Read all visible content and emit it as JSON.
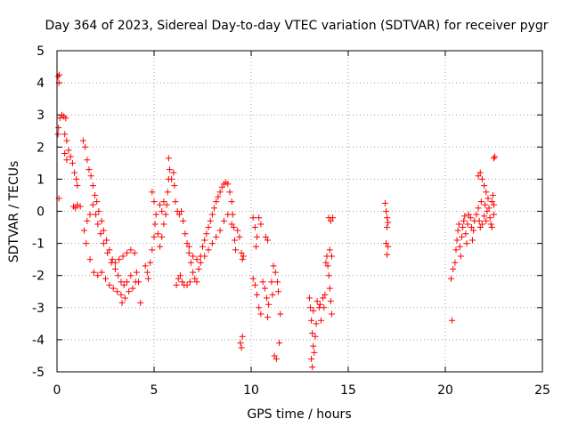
{
  "chart_data": {
    "type": "scatter",
    "title": "Day 364 of 2023, Sidereal Day-to-day VTEC variation (SDTVAR) for receiver pygr",
    "xlabel": "GPS time / hours",
    "ylabel": "SDTVAR / TECUs",
    "xlim": [
      0,
      25
    ],
    "ylim": [
      -5,
      5
    ],
    "xticks": [
      0,
      5,
      10,
      15,
      20,
      25
    ],
    "yticks": [
      -5,
      -4,
      -3,
      -2,
      -1,
      0,
      1,
      2,
      3,
      4,
      5
    ],
    "xtick_labels": [
      "0",
      "5",
      "10",
      "15",
      "20",
      "25"
    ],
    "ytick_labels": [
      "-5",
      "-4",
      "-3",
      "-2",
      "-1",
      "0",
      "1",
      "2",
      "3",
      "4",
      "5"
    ],
    "grid": true,
    "marker": "plus",
    "color": "#ff0000",
    "series": [
      {
        "name": "SDTVAR",
        "points": [
          [
            0.05,
            4.2
          ],
          [
            0.1,
            4.0
          ],
          [
            0.12,
            4.25
          ],
          [
            0.08,
            2.6
          ],
          [
            0.05,
            2.4
          ],
          [
            0.1,
            0.4
          ],
          [
            0.15,
            2.9
          ],
          [
            0.25,
            3.0
          ],
          [
            0.35,
            2.95
          ],
          [
            0.45,
            2.9
          ],
          [
            0.4,
            2.4
          ],
          [
            0.5,
            2.2
          ],
          [
            0.4,
            1.8
          ],
          [
            0.5,
            1.6
          ],
          [
            0.6,
            1.9
          ],
          [
            0.7,
            1.7
          ],
          [
            0.8,
            1.5
          ],
          [
            0.9,
            1.2
          ],
          [
            1.0,
            1.0
          ],
          [
            1.05,
            0.8
          ],
          [
            0.85,
            0.15
          ],
          [
            0.95,
            0.1
          ],
          [
            1.05,
            0.2
          ],
          [
            1.2,
            0.15
          ],
          [
            1.35,
            2.2
          ],
          [
            1.45,
            2.0
          ],
          [
            1.55,
            1.6
          ],
          [
            1.65,
            1.3
          ],
          [
            1.75,
            1.1
          ],
          [
            1.85,
            0.8
          ],
          [
            1.95,
            0.5
          ],
          [
            2.05,
            0.3
          ],
          [
            2.15,
            0.0
          ],
          [
            2.3,
            -0.3
          ],
          [
            2.4,
            -0.6
          ],
          [
            2.55,
            -0.9
          ],
          [
            2.7,
            -1.2
          ],
          [
            2.85,
            -1.5
          ],
          [
            3.0,
            -1.8
          ],
          [
            3.15,
            -2.0
          ],
          [
            3.3,
            -2.2
          ],
          [
            3.45,
            -2.3
          ],
          [
            3.6,
            -2.2
          ],
          [
            3.8,
            -2.0
          ],
          [
            1.4,
            -0.6
          ],
          [
            1.55,
            -0.3
          ],
          [
            1.7,
            -0.1
          ],
          [
            1.85,
            0.2
          ],
          [
            2.0,
            -0.1
          ],
          [
            2.1,
            -0.4
          ],
          [
            2.25,
            -0.7
          ],
          [
            2.4,
            -1.0
          ],
          [
            2.6,
            -1.3
          ],
          [
            2.8,
            -1.6
          ],
          [
            3.0,
            -1.6
          ],
          [
            3.2,
            -1.5
          ],
          [
            3.4,
            -1.4
          ],
          [
            3.6,
            -1.3
          ],
          [
            3.8,
            -1.2
          ],
          [
            4.0,
            -1.3
          ],
          [
            1.5,
            -1.0
          ],
          [
            1.7,
            -1.5
          ],
          [
            1.9,
            -1.9
          ],
          [
            2.1,
            -2.0
          ],
          [
            2.3,
            -1.9
          ],
          [
            2.5,
            -2.1
          ],
          [
            2.7,
            -2.3
          ],
          [
            2.9,
            -2.4
          ],
          [
            3.1,
            -2.5
          ],
          [
            3.3,
            -2.6
          ],
          [
            3.35,
            -2.85
          ],
          [
            3.5,
            -2.7
          ],
          [
            3.7,
            -2.5
          ],
          [
            3.9,
            -2.4
          ],
          [
            4.05,
            -2.2
          ],
          [
            4.1,
            -1.9
          ],
          [
            4.2,
            -2.2
          ],
          [
            4.3,
            -2.85
          ],
          [
            4.55,
            -1.7
          ],
          [
            4.65,
            -1.9
          ],
          [
            4.7,
            -2.1
          ],
          [
            4.8,
            -1.6
          ],
          [
            4.9,
            -1.2
          ],
          [
            5.0,
            -0.8
          ],
          [
            5.05,
            -0.4
          ],
          [
            5.1,
            -0.1
          ],
          [
            5.0,
            0.3
          ],
          [
            4.9,
            0.6
          ],
          [
            5.2,
            -0.7
          ],
          [
            5.3,
            -1.1
          ],
          [
            5.4,
            -0.8
          ],
          [
            5.5,
            -0.4
          ],
          [
            5.6,
            -0.1
          ],
          [
            5.5,
            0.3
          ],
          [
            5.4,
            0.0
          ],
          [
            5.3,
            0.2
          ],
          [
            5.65,
            0.2
          ],
          [
            5.7,
            0.6
          ],
          [
            5.75,
            1.0
          ],
          [
            5.8,
            1.3
          ],
          [
            5.75,
            1.65
          ],
          [
            5.9,
            1.0
          ],
          [
            6.0,
            1.2
          ],
          [
            6.05,
            0.8
          ],
          [
            6.1,
            0.3
          ],
          [
            6.2,
            0.0
          ],
          [
            6.3,
            -0.1
          ],
          [
            6.4,
            0.0
          ],
          [
            6.5,
            -0.3
          ],
          [
            6.6,
            -0.7
          ],
          [
            6.7,
            -1.0
          ],
          [
            6.8,
            -1.3
          ],
          [
            6.9,
            -1.6
          ],
          [
            7.0,
            -1.9
          ],
          [
            7.1,
            -2.1
          ],
          [
            7.2,
            -2.2
          ],
          [
            6.15,
            -2.3
          ],
          [
            6.25,
            -2.1
          ],
          [
            6.35,
            -2.0
          ],
          [
            6.45,
            -2.2
          ],
          [
            6.55,
            -2.3
          ],
          [
            6.7,
            -2.3
          ],
          [
            6.85,
            -2.2
          ],
          [
            7.3,
            -1.8
          ],
          [
            7.4,
            -1.4
          ],
          [
            7.5,
            -1.1
          ],
          [
            7.6,
            -0.9
          ],
          [
            7.7,
            -0.7
          ],
          [
            7.8,
            -0.5
          ],
          [
            7.9,
            -0.3
          ],
          [
            8.0,
            -0.1
          ],
          [
            8.1,
            0.1
          ],
          [
            8.2,
            0.3
          ],
          [
            8.3,
            0.45
          ],
          [
            8.4,
            0.6
          ],
          [
            8.5,
            0.75
          ],
          [
            8.6,
            0.85
          ],
          [
            8.7,
            0.9
          ],
          [
            8.8,
            0.85
          ],
          [
            8.9,
            0.6
          ],
          [
            9.0,
            0.3
          ],
          [
            9.05,
            -0.1
          ],
          [
            9.1,
            -0.5
          ],
          [
            9.15,
            -0.9
          ],
          [
            9.2,
            -1.2
          ],
          [
            6.8,
            -1.1
          ],
          [
            7.0,
            -1.4
          ],
          [
            7.2,
            -1.5
          ],
          [
            7.4,
            -1.6
          ],
          [
            7.6,
            -1.4
          ],
          [
            7.8,
            -1.2
          ],
          [
            8.0,
            -1.0
          ],
          [
            8.2,
            -0.8
          ],
          [
            8.4,
            -0.6
          ],
          [
            8.6,
            -0.3
          ],
          [
            8.8,
            -0.1
          ],
          [
            9.0,
            -0.4
          ],
          [
            9.3,
            -0.6
          ],
          [
            9.4,
            -0.8
          ],
          [
            9.5,
            -1.3
          ],
          [
            9.55,
            -1.5
          ],
          [
            9.6,
            -1.4
          ],
          [
            9.45,
            -4.1
          ],
          [
            9.55,
            -3.9
          ],
          [
            9.5,
            -4.25
          ],
          [
            10.1,
            -0.2
          ],
          [
            10.2,
            -0.5
          ],
          [
            10.3,
            -0.8
          ],
          [
            10.25,
            -1.1
          ],
          [
            10.4,
            -0.2
          ],
          [
            10.5,
            -0.4
          ],
          [
            10.1,
            -2.1
          ],
          [
            10.2,
            -2.3
          ],
          [
            10.3,
            -2.6
          ],
          [
            10.4,
            -3.0
          ],
          [
            10.5,
            -3.2
          ],
          [
            10.6,
            -2.2
          ],
          [
            10.7,
            -2.4
          ],
          [
            10.8,
            -2.7
          ],
          [
            10.9,
            -2.9
          ],
          [
            10.85,
            -3.3
          ],
          [
            10.75,
            -0.8
          ],
          [
            10.85,
            -0.9
          ],
          [
            11.15,
            -1.7
          ],
          [
            11.25,
            -1.9
          ],
          [
            11.35,
            -2.2
          ],
          [
            11.4,
            -2.5
          ],
          [
            11.5,
            -3.2
          ],
          [
            11.2,
            -4.5
          ],
          [
            11.3,
            -4.6
          ],
          [
            11.45,
            -4.1
          ],
          [
            11.05,
            -2.2
          ],
          [
            11.1,
            -2.6
          ],
          [
            13.0,
            -2.7
          ],
          [
            13.05,
            -3.0
          ],
          [
            13.1,
            -3.4
          ],
          [
            13.15,
            -3.8
          ],
          [
            13.2,
            -4.2
          ],
          [
            13.1,
            -4.6
          ],
          [
            13.15,
            -4.85
          ],
          [
            13.25,
            -4.4
          ],
          [
            13.3,
            -3.9
          ],
          [
            13.35,
            -3.5
          ],
          [
            13.2,
            -3.1
          ],
          [
            13.4,
            -2.8
          ],
          [
            13.5,
            -3.0
          ],
          [
            13.6,
            -3.4
          ],
          [
            13.55,
            -2.9
          ],
          [
            13.7,
            -2.7
          ],
          [
            13.75,
            -3.0
          ],
          [
            13.8,
            -2.6
          ],
          [
            13.85,
            -1.6
          ],
          [
            13.9,
            -1.4
          ],
          [
            13.95,
            -1.7
          ],
          [
            14.0,
            -2.0
          ],
          [
            14.05,
            -2.4
          ],
          [
            14.1,
            -2.8
          ],
          [
            14.15,
            -3.2
          ],
          [
            14.0,
            -0.2
          ],
          [
            14.1,
            -0.3
          ],
          [
            14.2,
            -0.2
          ],
          [
            14.05,
            -1.2
          ],
          [
            14.15,
            -1.4
          ],
          [
            16.9,
            0.25
          ],
          [
            16.95,
            0.0
          ],
          [
            17.0,
            -0.2
          ],
          [
            17.0,
            -0.5
          ],
          [
            16.95,
            -1.0
          ],
          [
            17.05,
            -1.1
          ],
          [
            17.0,
            -1.35
          ],
          [
            17.05,
            -0.35
          ],
          [
            20.3,
            -2.1
          ],
          [
            20.35,
            -3.4
          ],
          [
            20.4,
            -1.8
          ],
          [
            20.5,
            -1.6
          ],
          [
            20.55,
            -1.2
          ],
          [
            20.6,
            -0.9
          ],
          [
            20.65,
            -0.6
          ],
          [
            20.7,
            -0.4
          ],
          [
            20.75,
            -1.1
          ],
          [
            20.8,
            -1.4
          ],
          [
            20.85,
            -0.8
          ],
          [
            20.9,
            -0.5
          ],
          [
            20.95,
            -0.3
          ],
          [
            21.0,
            -0.15
          ],
          [
            21.05,
            -0.7
          ],
          [
            21.1,
            -1.0
          ],
          [
            21.15,
            -0.4
          ],
          [
            21.2,
            -0.1
          ],
          [
            21.3,
            -0.2
          ],
          [
            21.35,
            -0.5
          ],
          [
            21.4,
            -0.9
          ],
          [
            21.45,
            -0.6
          ],
          [
            21.5,
            -0.3
          ],
          [
            21.6,
            -0.1
          ],
          [
            21.7,
            0.1
          ],
          [
            21.75,
            -0.3
          ],
          [
            21.8,
            -0.5
          ],
          [
            21.85,
            0.3
          ],
          [
            21.9,
            -0.4
          ],
          [
            22.0,
            -0.15
          ],
          [
            22.05,
            0.2
          ],
          [
            22.1,
            -0.3
          ],
          [
            22.15,
            0.0
          ],
          [
            21.7,
            1.1
          ],
          [
            21.8,
            1.2
          ],
          [
            21.9,
            1.0
          ],
          [
            22.0,
            0.8
          ],
          [
            22.1,
            0.6
          ],
          [
            22.2,
            0.4
          ],
          [
            22.25,
            0.1
          ],
          [
            22.3,
            -0.2
          ],
          [
            22.35,
            -0.4
          ],
          [
            22.4,
            0.3
          ],
          [
            22.45,
            0.5
          ],
          [
            22.5,
            0.2
          ],
          [
            22.4,
            -0.5
          ],
          [
            22.5,
            -0.1
          ],
          [
            22.55,
            1.7
          ],
          [
            22.5,
            1.65
          ]
        ]
      }
    ]
  }
}
